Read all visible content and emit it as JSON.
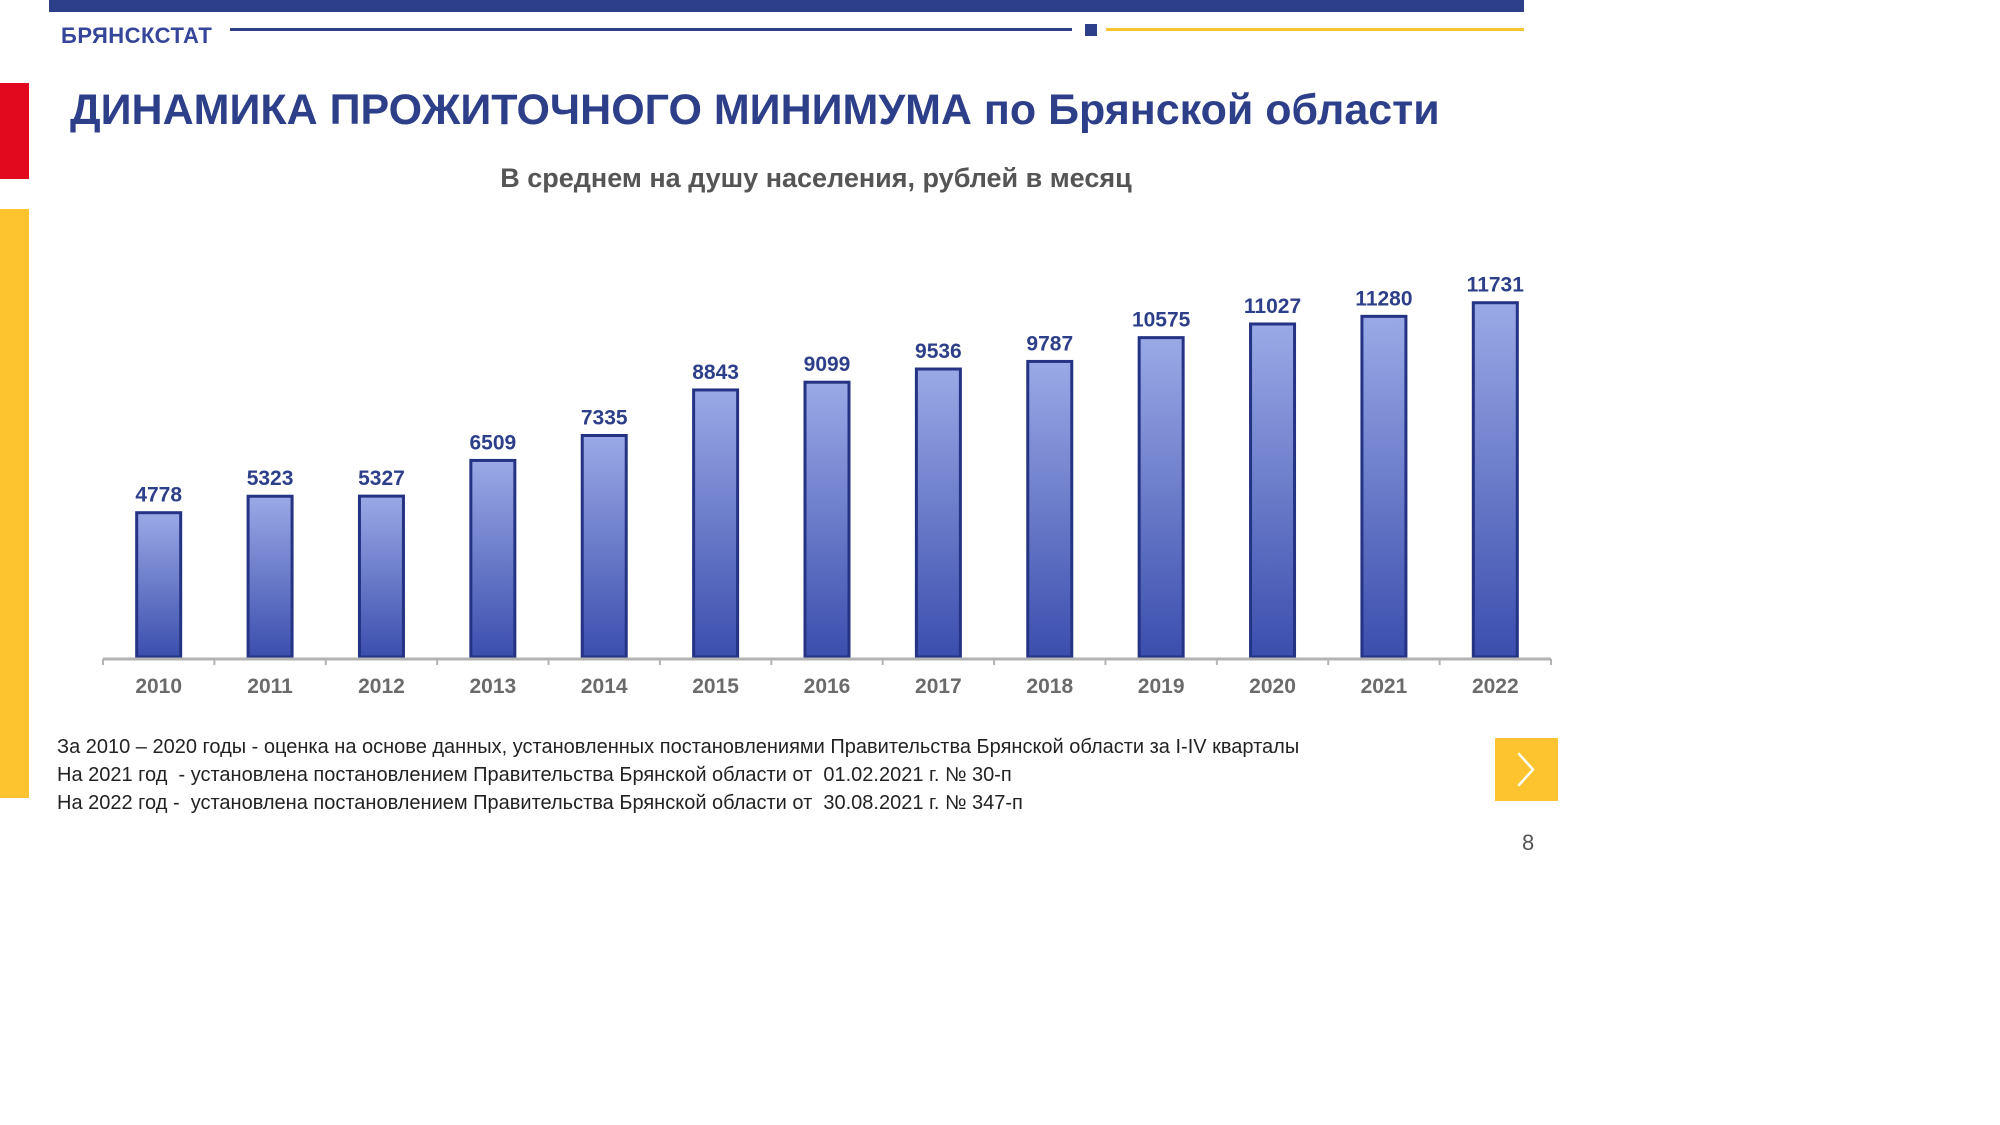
{
  "header": {
    "brand": "БРЯНСКСТАТ",
    "title": "ДИНАМИКА ПРОЖИТОЧНОГО МИНИМУМА по Брянской области",
    "subtitle": "В среднем на душу населения, рублей в месяц"
  },
  "colors": {
    "brand_blue": "#2e3f8a",
    "accent_yellow": "#fdc42f",
    "accent_red": "#e2091f",
    "bar_light": "#9aa9e6",
    "bar_dark": "#3b4ead",
    "bar_outline": "#243383"
  },
  "chart_data": {
    "type": "bar",
    "title": "",
    "xlabel": "",
    "ylabel": "",
    "categories": [
      "2010",
      "2011",
      "2012",
      "2013",
      "2014",
      "2015",
      "2016",
      "2017",
      "2018",
      "2019",
      "2020",
      "2021",
      "2022"
    ],
    "values": [
      4778,
      5323,
      5327,
      6509,
      7335,
      8843,
      9099,
      9536,
      9787,
      10575,
      11027,
      11280,
      11731
    ],
    "data_labels": true,
    "grid": false,
    "legend": "none"
  },
  "notes": [
    "За 2010 – 2020 годы - оценка на основе данных, установленных постановлениями Правительства Брянской области за I-IV кварталы",
    "На 2021 год  - установлена постановлением Правительства Брянской области от  01.02.2021 г. № 30-п",
    "На 2022 год -  установлена постановлением Правительства Брянской области от  30.08.2021 г. № 347-п"
  ],
  "navigation": {
    "next_icon": "chevron-right-icon",
    "page_number": "8"
  }
}
